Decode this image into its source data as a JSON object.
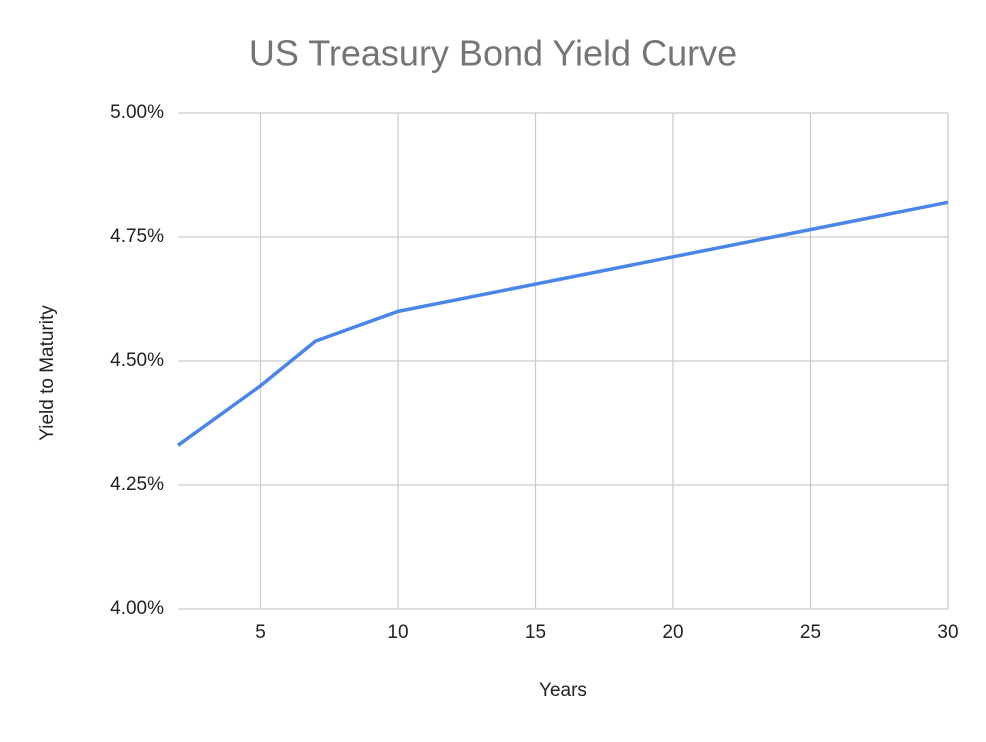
{
  "chart_data": {
    "type": "line",
    "title": "US Treasury Bond Yield Curve",
    "x_label": "Years",
    "y_label": "Yield to Maturity",
    "x": [
      2,
      5,
      7,
      10,
      20,
      30
    ],
    "values": [
      4.33,
      4.45,
      4.54,
      4.6,
      4.71,
      4.82
    ],
    "color": "#4a86e8",
    "xlim": [
      2,
      30
    ],
    "ylim": [
      4,
      5
    ],
    "xticks": [
      5,
      10,
      15,
      20,
      25,
      30
    ],
    "yticks": [
      {
        "value": 4,
        "label": "4.00%"
      },
      {
        "value": 4.25,
        "label": "4.25%"
      },
      {
        "value": 4.5,
        "label": "4.50%"
      },
      {
        "value": 4.75,
        "label": "4.75%"
      },
      {
        "value": 5,
        "label": "5.00%"
      }
    ],
    "grid": true
  }
}
